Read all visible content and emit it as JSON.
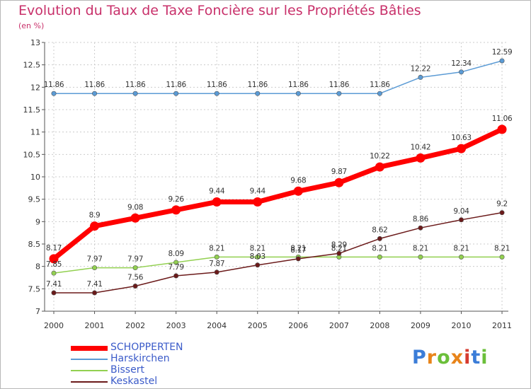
{
  "title": "Evolution du Taux de Taxe Foncière sur les Propriétés Bâties",
  "unit_label": "(en %)",
  "logo_text": "Proxiti",
  "chart_data": {
    "type": "line",
    "title": "Evolution du Taux de Taxe Foncière sur les Propriétés Bâties",
    "ylabel": "(en %)",
    "xlabel": "",
    "x": [
      "2000",
      "2001",
      "2002",
      "2003",
      "2004",
      "2005",
      "2006",
      "2007",
      "2008",
      "2009",
      "2010",
      "2011"
    ],
    "ylim": [
      7,
      13
    ],
    "yticks": [
      "7",
      "7.5",
      "8",
      "8.5",
      "9",
      "9.5",
      "10",
      "10.5",
      "11",
      "11.5",
      "12",
      "12.5",
      "13"
    ],
    "grid": true,
    "legend_position": "bottom-left",
    "series": [
      {
        "name": "SCHOPPERTEN",
        "color": "#ff0000",
        "values": [
          8.17,
          8.9,
          9.08,
          9.26,
          9.44,
          9.44,
          9.68,
          9.87,
          10.22,
          10.42,
          10.63,
          11.06
        ],
        "labels": [
          "8.17",
          "8.9",
          "9.08",
          "9.26",
          "9.44",
          "9.44",
          "9.68",
          "9.87",
          "10.22",
          "10.42",
          "10.63",
          "11.06"
        ]
      },
      {
        "name": "Harskirchen",
        "color": "#5b9bd5",
        "values": [
          11.86,
          11.86,
          11.86,
          11.86,
          11.86,
          11.86,
          11.86,
          11.86,
          11.86,
          12.22,
          12.34,
          12.59
        ],
        "labels": [
          "11.86",
          "11.86",
          "11.86",
          "11.86",
          "11.86",
          "11.86",
          "11.86",
          "11.86",
          "11.86",
          "12.22",
          "12.34",
          "12.59"
        ]
      },
      {
        "name": "Bissert",
        "color": "#92d050",
        "values": [
          7.85,
          7.97,
          7.97,
          8.09,
          8.21,
          8.21,
          8.21,
          8.21,
          8.21,
          8.21,
          8.21,
          8.21
        ],
        "labels": [
          "7.85",
          "7.97",
          "7.97",
          "8.09",
          "8.21",
          "8.21",
          "8.21",
          "8.21",
          "8.21",
          "8.21",
          "8.21",
          "8.21"
        ]
      },
      {
        "name": "Keskastel",
        "color": "#6b1a1a",
        "values": [
          7.41,
          7.41,
          7.56,
          7.79,
          7.87,
          8.03,
          8.17,
          8.29,
          8.62,
          8.86,
          9.04,
          9.2
        ],
        "labels": [
          "7.41",
          "7.41",
          "7.56",
          "7.79",
          "7.87",
          "8.03",
          "8.17",
          "8.29",
          "8.62",
          "8.86",
          "9.04",
          "9.2"
        ]
      }
    ]
  }
}
